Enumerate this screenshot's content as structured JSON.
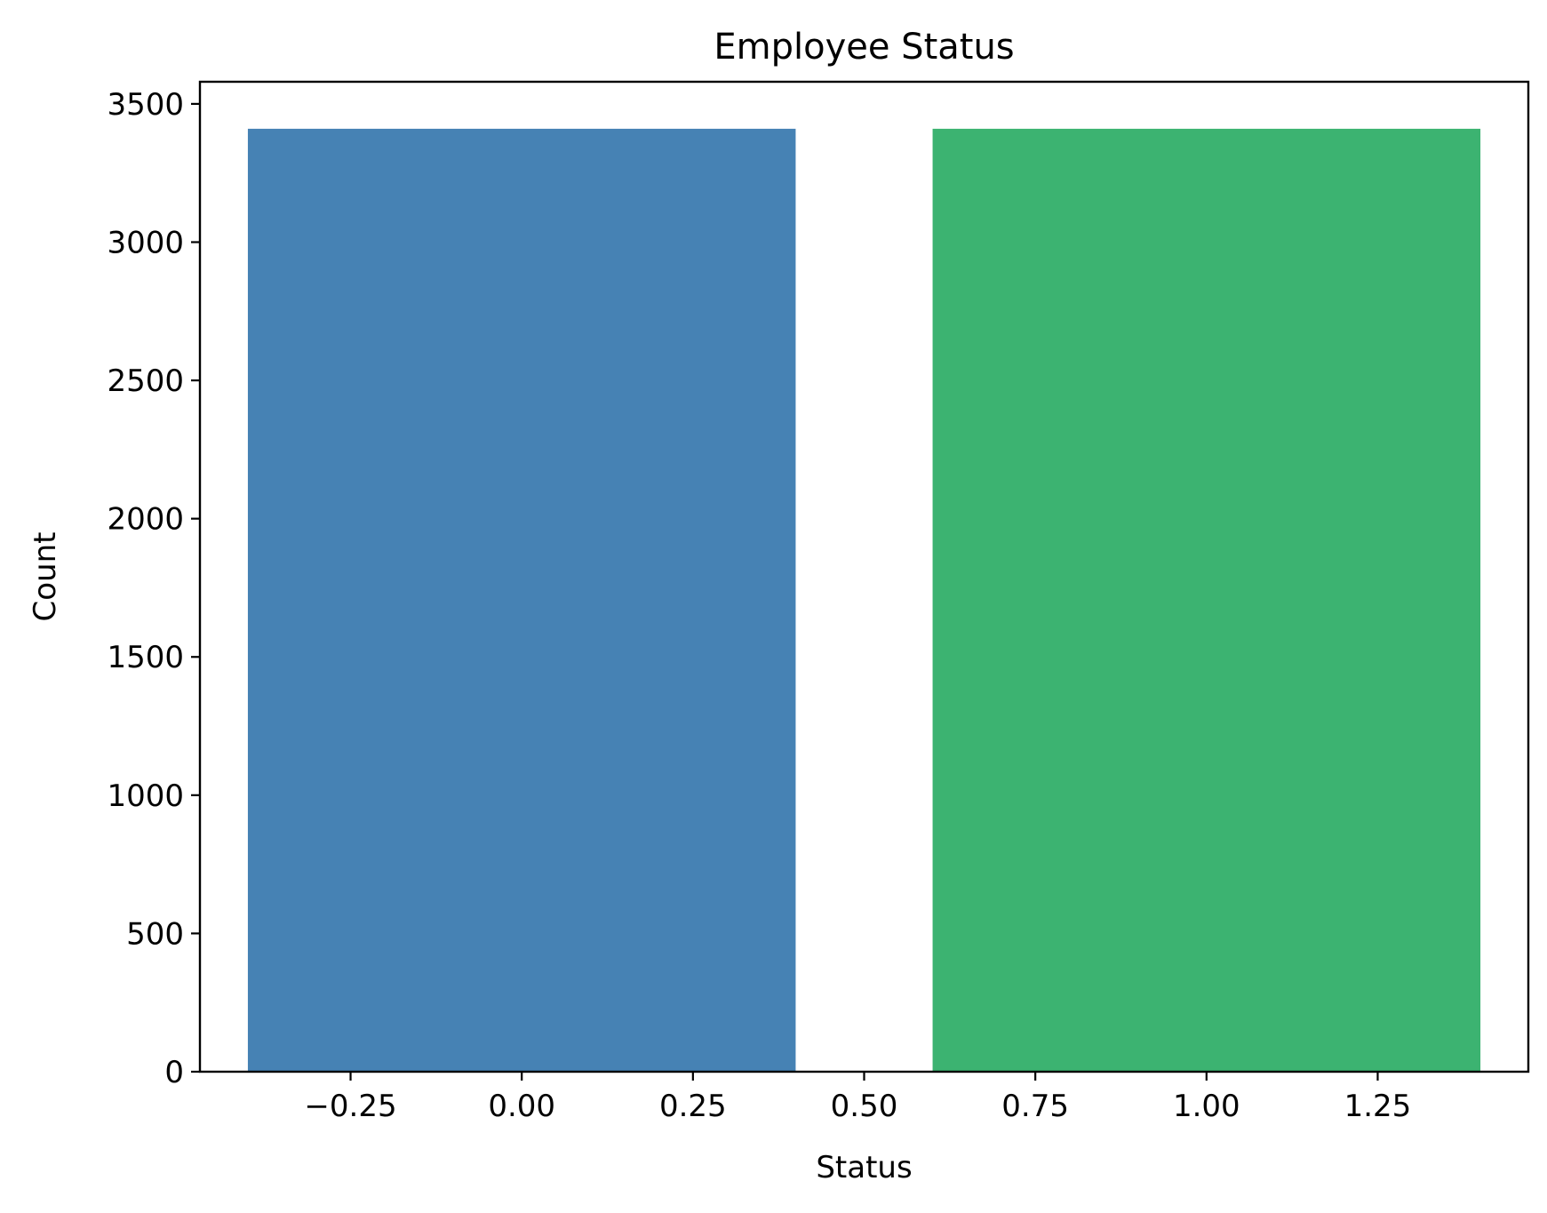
{
  "chart_data": {
    "type": "bar",
    "title": "Employee Status",
    "xlabel": "Status",
    "ylabel": "Count",
    "x": [
      0,
      1
    ],
    "bar_width": 0.8,
    "values": [
      3410,
      3410
    ],
    "colors": [
      "#4682b4",
      "#3cb371"
    ],
    "xlim": [
      -0.47,
      1.47
    ],
    "ylim": [
      0,
      3580
    ],
    "x_ticks": [
      -0.25,
      0,
      0.25,
      0.5,
      0.75,
      1,
      1.25
    ],
    "x_tick_labels": [
      "−0.25",
      "0.00",
      "0.25",
      "0.50",
      "0.75",
      "1.00",
      "1.25"
    ],
    "y_ticks": [
      0,
      500,
      1000,
      1500,
      2000,
      2500,
      3000,
      3500
    ],
    "y_tick_labels": [
      "0",
      "500",
      "1000",
      "1500",
      "2000",
      "2500",
      "3000",
      "3500"
    ],
    "grid": false,
    "legend": "none"
  }
}
